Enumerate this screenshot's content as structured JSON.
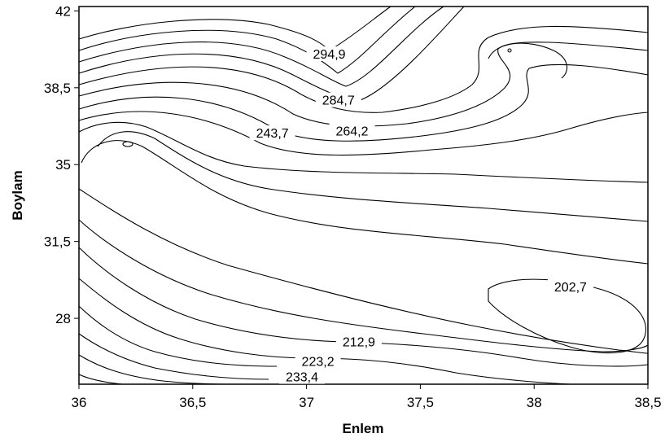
{
  "chart_data": {
    "type": "contour",
    "xlabel": "Enlem",
    "ylabel": "Boylam",
    "xlim": [
      36,
      38.5
    ],
    "ylim": [
      25,
      42.2
    ],
    "x_ticks": [
      "36",
      "36,5",
      "37",
      "37,5",
      "38",
      "38,5"
    ],
    "y_ticks": [
      "42",
      "38,5",
      "35",
      "31,5",
      "28"
    ],
    "contour_labels": [
      {
        "text": "294,9",
        "x": 37.1,
        "y": 39.9
      },
      {
        "text": "284,7",
        "x": 37.14,
        "y": 37.8
      },
      {
        "text": "264,2",
        "x": 37.2,
        "y": 36.4
      },
      {
        "text": "243,7",
        "x": 36.85,
        "y": 36.3
      },
      {
        "text": "202,7",
        "x": 38.16,
        "y": 29.3
      },
      {
        "text": "212,9",
        "x": 37.23,
        "y": 26.8
      },
      {
        "text": "223,2",
        "x": 37.05,
        "y": 25.9
      },
      {
        "text": "233,4",
        "x": 36.98,
        "y": 25.2
      }
    ],
    "grid": false
  }
}
